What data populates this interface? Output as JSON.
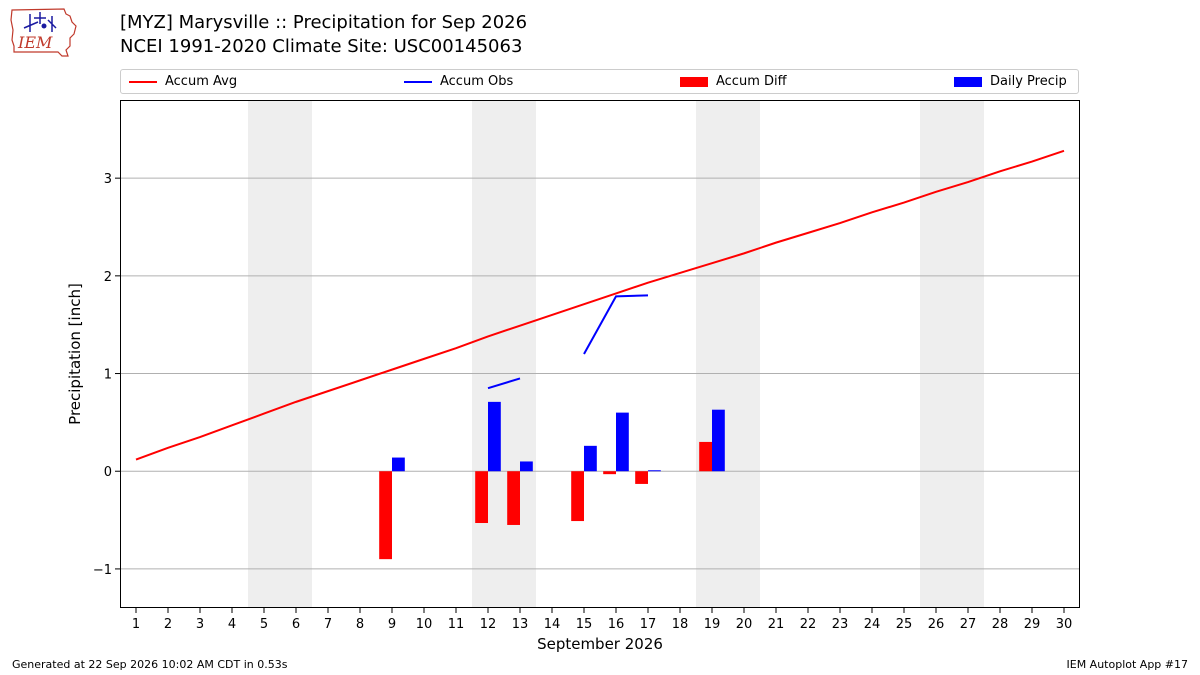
{
  "header": {
    "logo_text": "IEM",
    "title": "[MYZ] Marysville :: Precipitation for Sep 2026",
    "subtitle": "NCEI 1991-2020 Climate Site: USC00145063"
  },
  "footer": {
    "left": "Generated at 22 Sep 2026 10:02 AM CDT in 0.53s",
    "right": "IEM Autoplot App #17"
  },
  "colors": {
    "accum_avg": "#ff0000",
    "accum_obs": "#0000ff",
    "accum_diff": "#ff0000",
    "daily_precip": "#0000ff",
    "weekend_shade": "#eeeeee",
    "grid": "#b0b0b0"
  },
  "chart_data": {
    "type": "bar",
    "xlabel": "September 2026",
    "ylabel": "Precipitation [inch]",
    "xlim": [
      0.5,
      30.5
    ],
    "ylim": [
      -1.4,
      3.8
    ],
    "yticks": [
      -1,
      0,
      1,
      2,
      3
    ],
    "ytick_labels": [
      "−1",
      "0",
      "1",
      "2",
      "3"
    ],
    "x": [
      1,
      2,
      3,
      4,
      5,
      6,
      7,
      8,
      9,
      10,
      11,
      12,
      13,
      14,
      15,
      16,
      17,
      18,
      19,
      20,
      21,
      22,
      23,
      24,
      25,
      26,
      27,
      28,
      29,
      30
    ],
    "xtick_labels": [
      "1",
      "2",
      "3",
      "4",
      "5",
      "6",
      "7",
      "8",
      "9",
      "10",
      "11",
      "12",
      "13",
      "14",
      "15",
      "16",
      "17",
      "18",
      "19",
      "20",
      "21",
      "22",
      "23",
      "24",
      "25",
      "26",
      "27",
      "28",
      "29",
      "30"
    ],
    "grid": "y",
    "legend": {
      "placement": "top",
      "entries": [
        "Accum Avg",
        "Accum Obs",
        "Accum Diff",
        "Daily Precip"
      ]
    },
    "weekend_shading": [
      [
        4.5,
        6.5
      ],
      [
        11.5,
        13.5
      ],
      [
        18.5,
        20.5
      ],
      [
        25.5,
        27.5
      ]
    ],
    "series": [
      {
        "name": "Accum Avg",
        "type": "line",
        "x": [
          1,
          2,
          3,
          4,
          5,
          6,
          7,
          8,
          9,
          10,
          11,
          12,
          13,
          14,
          15,
          16,
          17,
          18,
          19,
          20,
          21,
          22,
          23,
          24,
          25,
          26,
          27,
          28,
          29,
          30
        ],
        "values": [
          0.12,
          0.24,
          0.35,
          0.47,
          0.59,
          0.71,
          0.82,
          0.93,
          1.04,
          1.15,
          1.26,
          1.38,
          1.49,
          1.6,
          1.71,
          1.82,
          1.93,
          2.03,
          2.13,
          2.23,
          2.34,
          2.44,
          2.54,
          2.65,
          2.75,
          2.86,
          2.96,
          3.07,
          3.17,
          3.28
        ]
      },
      {
        "name": "Accum Obs",
        "type": "line",
        "segments": [
          {
            "x": [
              12,
              13
            ],
            "values": [
              0.85,
              0.95
            ]
          },
          {
            "x": [
              15,
              16,
              17
            ],
            "values": [
              1.2,
              1.79,
              1.8
            ]
          }
        ]
      },
      {
        "name": "Accum Diff",
        "type": "bar",
        "x": [
          9,
          12,
          13,
          15,
          16,
          17,
          19
        ],
        "values": [
          -0.9,
          -0.53,
          -0.55,
          -0.51,
          -0.03,
          -0.13,
          0.3
        ]
      },
      {
        "name": "Daily Precip",
        "type": "bar",
        "x": [
          9,
          12,
          13,
          15,
          16,
          17,
          19
        ],
        "values": [
          0.14,
          0.71,
          0.1,
          0.26,
          0.6,
          0.01,
          0.63
        ]
      }
    ]
  }
}
